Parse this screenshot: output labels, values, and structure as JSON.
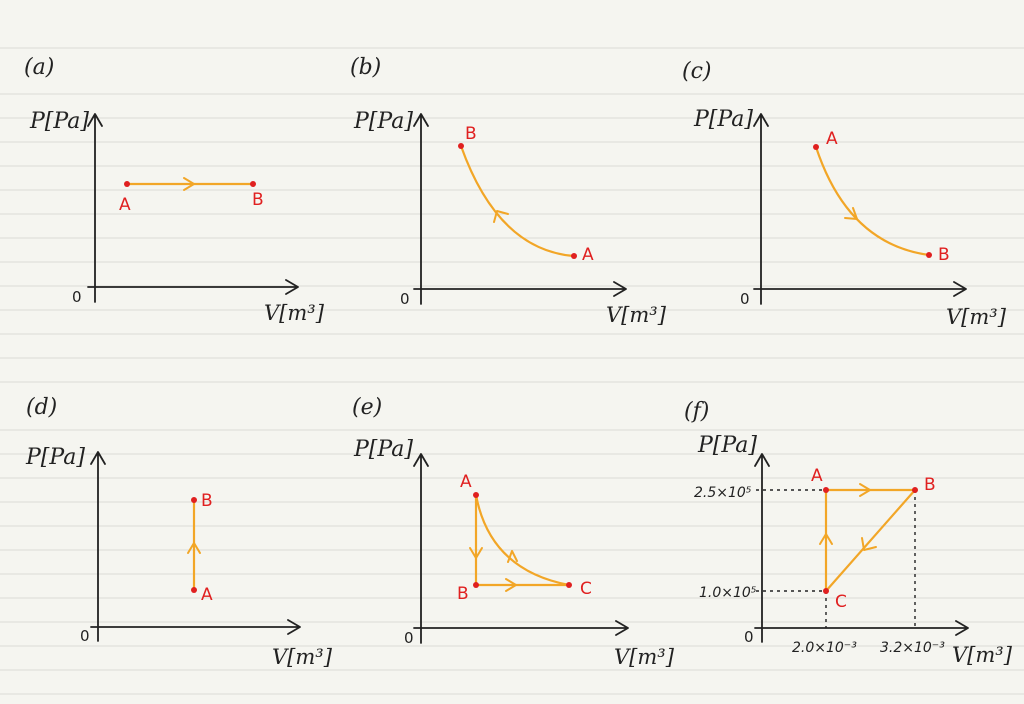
{
  "panels": [
    {
      "label": "(a)",
      "y_axis": "P[Pa]",
      "x_axis": "V[m³]",
      "origin": "0",
      "points": {
        "A": "A",
        "B": "B"
      }
    },
    {
      "label": "(b)",
      "y_axis": "P[Pa]",
      "x_axis": "V[m³]",
      "origin": "0",
      "points": {
        "A": "A",
        "B": "B"
      }
    },
    {
      "label": "(c)",
      "y_axis": "P[Pa]",
      "x_axis": "V[m³]",
      "origin": "0",
      "points": {
        "A": "A",
        "B": "B"
      }
    },
    {
      "label": "(d)",
      "y_axis": "P[Pa]",
      "x_axis": "V[m³]",
      "origin": "0",
      "points": {
        "A": "A",
        "B": "B"
      }
    },
    {
      "label": "(e)",
      "y_axis": "P[Pa]",
      "x_axis": "V[m³]",
      "origin": "0",
      "points": {
        "A": "A",
        "B": "B",
        "C": "C"
      }
    },
    {
      "label": "(f)",
      "y_axis": "P[Pa]",
      "x_axis": "V[m³]",
      "origin": "0",
      "points": {
        "A": "A",
        "B": "B",
        "C": "C"
      },
      "y_ticks": [
        "2.5×10⁵",
        "1.0×10⁵"
      ],
      "x_ticks": [
        "2.0×10⁻³",
        "3.2×10⁻³"
      ]
    }
  ],
  "colors": {
    "path": "#f2a627",
    "point": "#e02020",
    "axis": "#222222",
    "background": "#f5f5f0",
    "ruled_line": "#dcdcd6"
  }
}
